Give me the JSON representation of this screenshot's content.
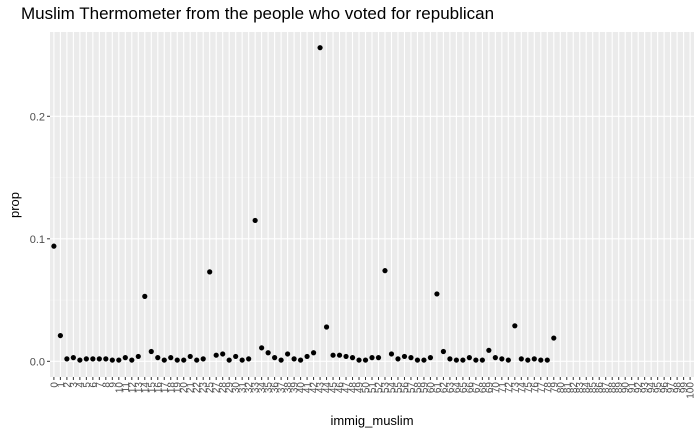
{
  "chart_data": {
    "type": "scatter",
    "title": "Muslim Thermometer from the people who voted for republican",
    "xlabel": "immig_muslim",
    "ylabel": "prop",
    "x_axis": "categorical",
    "categories": [
      "0",
      "1",
      "2",
      "3",
      "4",
      "5",
      "6",
      "7",
      "8",
      "9",
      "10",
      "11",
      "12",
      "13",
      "14",
      "15",
      "16",
      "17",
      "18",
      "19",
      "20",
      "21",
      "22",
      "23",
      "24",
      "25",
      "26",
      "27",
      "28",
      "29",
      "30",
      "31",
      "32",
      "33",
      "34",
      "35",
      "36",
      "37",
      "38",
      "39",
      "40",
      "41",
      "42",
      "43",
      "44",
      "45",
      "46",
      "47",
      "48",
      "49",
      "50",
      "51",
      "52",
      "53",
      "54",
      "55",
      "56",
      "57",
      "58",
      "59",
      "60",
      "61",
      "62",
      "63",
      "64",
      "65",
      "66",
      "67",
      "68",
      "69",
      "70",
      "71",
      "72",
      "73",
      "74",
      "75",
      "76",
      "77",
      "78",
      "79",
      "80",
      "81",
      "82",
      "83",
      "84",
      "85",
      "86",
      "87",
      "88",
      "89",
      "90",
      "91",
      "92",
      "93",
      "94",
      "95",
      "96",
      "97",
      "98",
      "99",
      "100"
    ],
    "present_categories": [
      "0",
      "1",
      "2",
      "3",
      "4",
      "5",
      "6",
      "7",
      "8",
      "9",
      "10",
      "11",
      "12",
      "13",
      "14",
      "15",
      "16",
      "17",
      "18",
      "19",
      "20",
      "21",
      "22",
      "23",
      "25",
      "27",
      "28",
      "29",
      "30",
      "31",
      "32",
      "33",
      "34",
      "35",
      "36",
      "37",
      "38",
      "39",
      "40",
      "41",
      "42",
      "43",
      "44",
      "45",
      "46",
      "47",
      "48",
      "49",
      "50",
      "51",
      "52",
      "53",
      "54",
      "55",
      "56",
      "57",
      "58",
      "59",
      "60",
      "61",
      "62",
      "63",
      "64",
      "65",
      "66",
      "67",
      "68",
      "69",
      "70",
      "71",
      "72",
      "73",
      "74",
      "75",
      "76",
      "77",
      "78",
      "79",
      "80",
      "81",
      "82",
      "83",
      "84",
      "85",
      "86",
      "87",
      "88",
      "89",
      "90",
      "91",
      "92",
      "93",
      "94",
      "95",
      "96",
      "97",
      "98",
      "99",
      "100"
    ],
    "points": [
      {
        "x": "0",
        "y": 0.094
      },
      {
        "x": "1",
        "y": 0.021
      },
      {
        "x": "2",
        "y": 0.002
      },
      {
        "x": "3",
        "y": 0.003
      },
      {
        "x": "4",
        "y": 0.001
      },
      {
        "x": "5",
        "y": 0.002
      },
      {
        "x": "6",
        "y": 0.002
      },
      {
        "x": "7",
        "y": 0.002
      },
      {
        "x": "8",
        "y": 0.002
      },
      {
        "x": "9",
        "y": 0.001
      },
      {
        "x": "10",
        "y": 0.001
      },
      {
        "x": "11",
        "y": 0.003
      },
      {
        "x": "12",
        "y": 0.001
      },
      {
        "x": "13",
        "y": 0.004
      },
      {
        "x": "14",
        "y": 0.053
      },
      {
        "x": "15",
        "y": 0.008
      },
      {
        "x": "16",
        "y": 0.003
      },
      {
        "x": "17",
        "y": 0.001
      },
      {
        "x": "18",
        "y": 0.003
      },
      {
        "x": "19",
        "y": 0.001
      },
      {
        "x": "20",
        "y": 0.001
      },
      {
        "x": "21",
        "y": 0.004
      },
      {
        "x": "22",
        "y": 0.001
      },
      {
        "x": "23",
        "y": 0.002
      },
      {
        "x": "25",
        "y": 0.073
      },
      {
        "x": "27",
        "y": 0.005
      },
      {
        "x": "28",
        "y": 0.006
      },
      {
        "x": "29",
        "y": 0.001
      },
      {
        "x": "30",
        "y": 0.004
      },
      {
        "x": "31",
        "y": 0.001
      },
      {
        "x": "32",
        "y": 0.002
      },
      {
        "x": "33",
        "y": 0.115
      },
      {
        "x": "34",
        "y": 0.011
      },
      {
        "x": "35",
        "y": 0.007
      },
      {
        "x": "36",
        "y": 0.003
      },
      {
        "x": "37",
        "y": 0.001
      },
      {
        "x": "38",
        "y": 0.006
      },
      {
        "x": "39",
        "y": 0.002
      },
      {
        "x": "40",
        "y": 0.001
      },
      {
        "x": "41",
        "y": 0.004
      },
      {
        "x": "42",
        "y": 0.007
      },
      {
        "x": "43",
        "y": 0.256
      },
      {
        "x": "44",
        "y": 0.028
      },
      {
        "x": "45",
        "y": 0.005
      },
      {
        "x": "46",
        "y": 0.005
      },
      {
        "x": "47",
        "y": 0.004
      },
      {
        "x": "48",
        "y": 0.003
      },
      {
        "x": "49",
        "y": 0.001
      },
      {
        "x": "50",
        "y": 0.001
      },
      {
        "x": "51",
        "y": 0.003
      },
      {
        "x": "52",
        "y": 0.003
      },
      {
        "x": "53",
        "y": 0.074
      },
      {
        "x": "54",
        "y": 0.006
      },
      {
        "x": "55",
        "y": 0.002
      },
      {
        "x": "56",
        "y": 0.004
      },
      {
        "x": "57",
        "y": 0.003
      },
      {
        "x": "58",
        "y": 0.001
      },
      {
        "x": "59",
        "y": 0.001
      },
      {
        "x": "60",
        "y": 0.003
      },
      {
        "x": "61",
        "y": 0.055
      },
      {
        "x": "62",
        "y": 0.008
      },
      {
        "x": "63",
        "y": 0.002
      },
      {
        "x": "64",
        "y": 0.001
      },
      {
        "x": "65",
        "y": 0.001
      },
      {
        "x": "66",
        "y": 0.003
      },
      {
        "x": "67",
        "y": 0.001
      },
      {
        "x": "68",
        "y": 0.001
      },
      {
        "x": "69",
        "y": 0.009
      },
      {
        "x": "70",
        "y": 0.003
      },
      {
        "x": "71",
        "y": 0.002
      },
      {
        "x": "72",
        "y": 0.001
      },
      {
        "x": "73",
        "y": 0.029
      },
      {
        "x": "74",
        "y": 0.002
      },
      {
        "x": "75",
        "y": 0.001
      },
      {
        "x": "76",
        "y": 0.002
      },
      {
        "x": "77",
        "y": 0.001
      },
      {
        "x": "78",
        "y": 0.001
      },
      {
        "x": "79",
        "y": 0.019
      }
    ],
    "y_ticks": [
      0.0,
      0.1,
      0.2
    ],
    "y_tick_labels": [
      "0.0",
      "0.1",
      "0.2"
    ],
    "ylim": [
      -0.0128,
      0.2688
    ],
    "grid": true,
    "colors": {
      "panel_bg": "#ebebeb",
      "grid_major": "#ffffff",
      "grid_minor": "#f3f3f3",
      "point": "#000000",
      "tick": "#333333",
      "tick_label": "#4d4d4d"
    }
  }
}
